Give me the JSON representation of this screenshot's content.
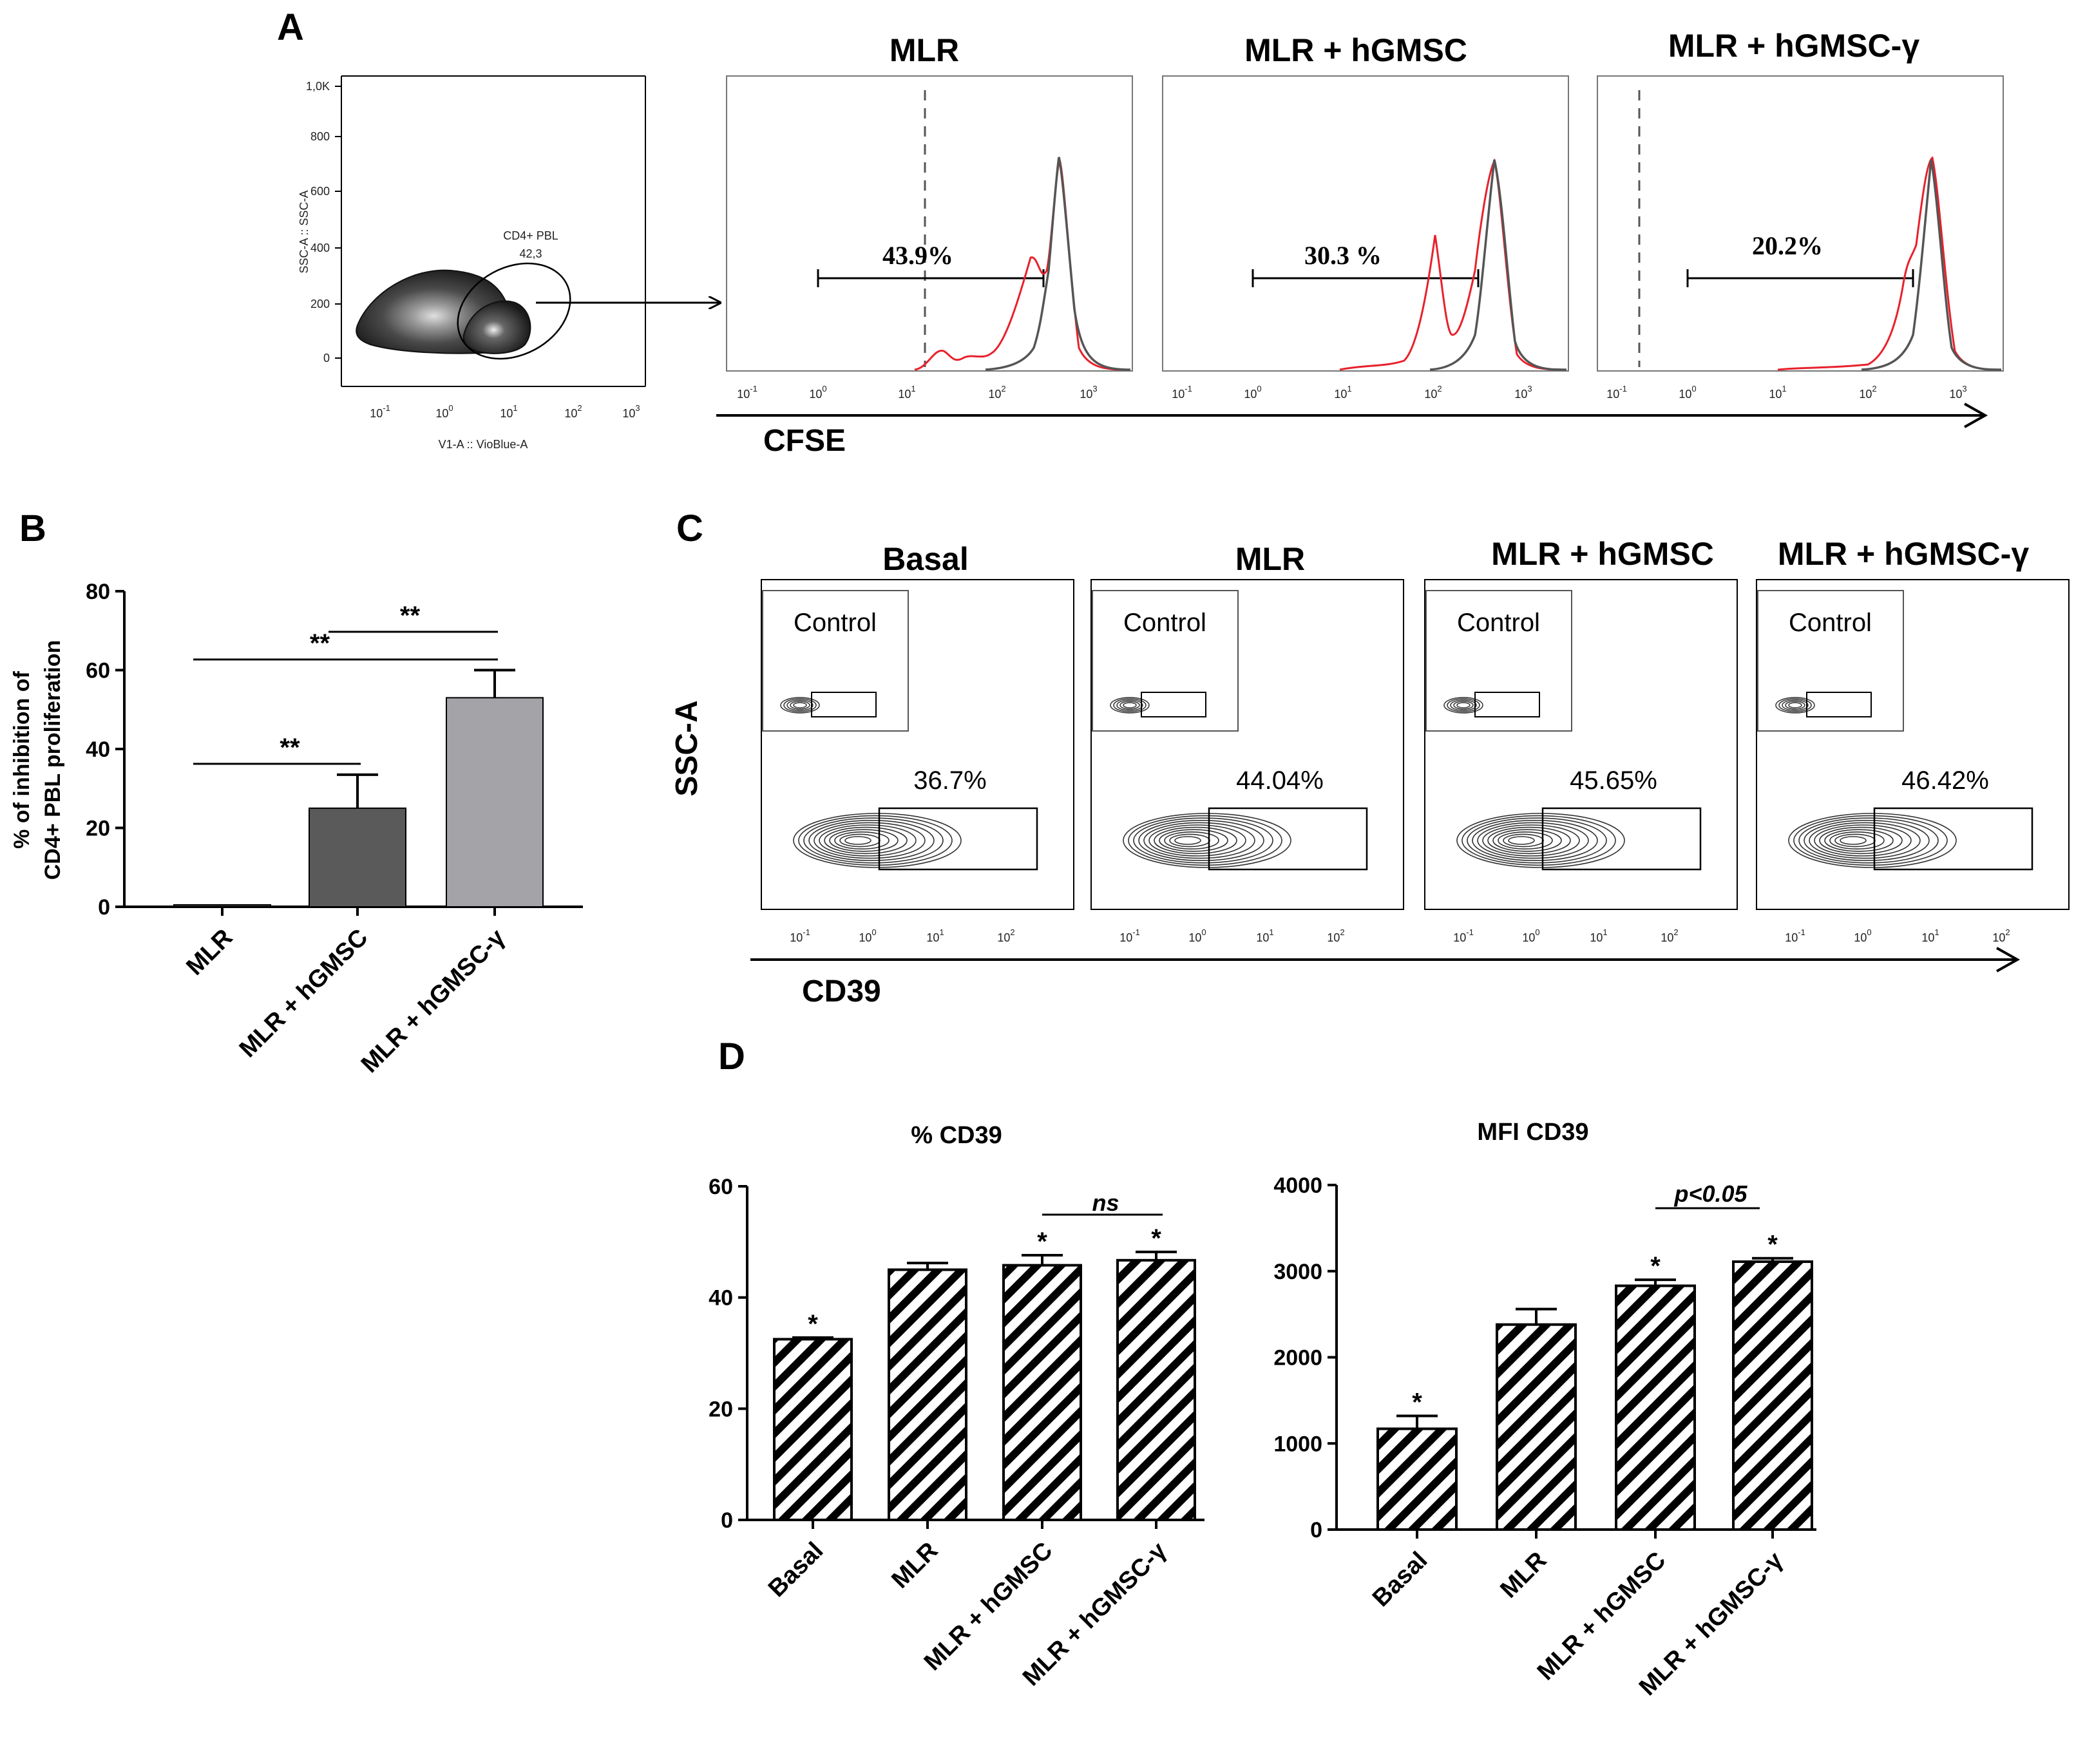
{
  "panels": {
    "A": {
      "letter": "A",
      "scatter": {
        "y_label": "SSC-A :: SSC-A",
        "x_label": "V1-A :: VioBlue-A",
        "y_ticks": [
          "1,0K",
          "800",
          "600",
          "400",
          "200",
          "0"
        ],
        "x_tick_bases": [
          "10",
          "10",
          "10",
          "10",
          "10"
        ],
        "x_tick_exps": [
          "-1",
          "0",
          "1",
          "2",
          "3"
        ],
        "gate_name": "CD4+ PBL",
        "gate_value": "42,3"
      },
      "axis_title": "CFSE",
      "histogram_x_bases": [
        "10",
        "10",
        "10",
        "10",
        "10"
      ],
      "histogram_x_exps": [
        "-1",
        "0",
        "1",
        "2",
        "3"
      ],
      "histograms": [
        {
          "title": "MLR",
          "percent": "43.9%"
        },
        {
          "title": "MLR + hGMSC",
          "percent": "30.3 %"
        },
        {
          "title": "MLR + hGMSC-γ",
          "percent": "20.2%"
        }
      ],
      "colors": {
        "treated": "#e8212b",
        "control": "#555555"
      }
    },
    "B": {
      "letter": "B",
      "significance": [
        "**",
        "**",
        "**"
      ]
    },
    "C": {
      "letter": "C",
      "y_title": "SSC-A",
      "x_title": "CD39",
      "control_label": "Control",
      "x_tick_bases": [
        "10",
        "10",
        "10",
        "10"
      ],
      "x_tick_exps": [
        "-1",
        "0",
        "1",
        "2"
      ],
      "plots": [
        {
          "title": "Basal",
          "percent": "36.7%"
        },
        {
          "title": "MLR",
          "percent": "44.04%"
        },
        {
          "title": "MLR + hGMSC",
          "percent": "45.65%"
        },
        {
          "title": "MLR + hGMSC-γ",
          "percent": "46.42%"
        }
      ]
    },
    "D": {
      "letter": "D",
      "left_sig": "ns",
      "right_sig": "p<0.05"
    }
  },
  "chart_data": [
    {
      "id": "B",
      "type": "bar",
      "title": "",
      "ylabel_lines": [
        "% of inhibition of",
        "CD4+ PBL proliferation"
      ],
      "xlabel": "",
      "categories": [
        "MLR",
        "MLR + hGMSC",
        "MLR + hGMSC-γ"
      ],
      "values": [
        0.5,
        25,
        53
      ],
      "errors": [
        0,
        8.5,
        7
      ],
      "ylim": [
        0,
        80
      ],
      "yticks": [
        0,
        20,
        40,
        60,
        80
      ],
      "colors": [
        "#3a3a3a",
        "#5a5a5a",
        "#a4a4a8"
      ],
      "significance": [
        {
          "from": 0,
          "to": 1,
          "label": "**"
        },
        {
          "from": 0,
          "to": 2,
          "label": "**"
        },
        {
          "from": 1,
          "to": 2,
          "label": "**"
        }
      ]
    },
    {
      "id": "D-left",
      "type": "bar",
      "title": "% CD39",
      "xlabel": "",
      "ylabel": "",
      "categories": [
        "Basal",
        "MLR",
        "MLR + hGMSC",
        "MLR + hGMSC-γ"
      ],
      "values": [
        32.5,
        45,
        45.8,
        46.7
      ],
      "errors": [
        0.3,
        1.2,
        1.8,
        1.5
      ],
      "ylim": [
        0,
        60
      ],
      "yticks": [
        0,
        20,
        40,
        60
      ],
      "stars": [
        "*",
        "",
        "*",
        "*"
      ],
      "bracket": {
        "from": 2,
        "to": 3,
        "label": "ns"
      },
      "pattern": "diagonal-hatch"
    },
    {
      "id": "D-right",
      "type": "bar",
      "title": "MFI CD39",
      "xlabel": "",
      "ylabel": "",
      "categories": [
        "Basal",
        "MLR",
        "MLR + hGMSC",
        "MLR + hGMSC-γ"
      ],
      "values": [
        1170,
        2380,
        2830,
        3110
      ],
      "errors": [
        150,
        180,
        70,
        40
      ],
      "ylim": [
        0,
        4000
      ],
      "yticks": [
        0,
        1000,
        2000,
        3000,
        4000
      ],
      "stars": [
        "*",
        "",
        "*",
        "*"
      ],
      "bracket": {
        "from": 2,
        "to": 3,
        "label": "p<0.05"
      },
      "pattern": "diagonal-hatch"
    }
  ]
}
